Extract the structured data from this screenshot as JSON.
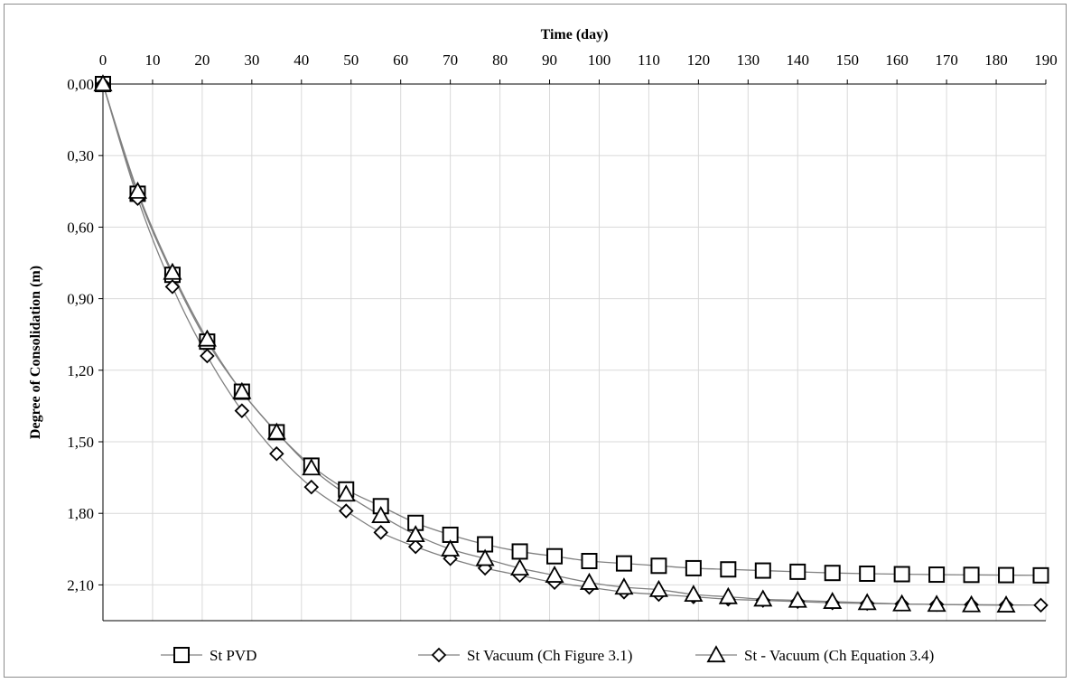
{
  "chart_data": {
    "type": "line",
    "xlabel": "Time (day)",
    "ylabel": "Degree of Consolidation (m)",
    "x_axis_position": "top",
    "y_axis_inverted": true,
    "xlim": [
      0,
      190
    ],
    "ylim": [
      0,
      2.25
    ],
    "x_ticks": [
      "0",
      "10",
      "20",
      "30",
      "40",
      "50",
      "60",
      "70",
      "80",
      "90",
      "100",
      "110",
      "120",
      "130",
      "140",
      "150",
      "160",
      "170",
      "180",
      "190"
    ],
    "x_tick_values": [
      0,
      10,
      20,
      30,
      40,
      50,
      60,
      70,
      80,
      90,
      100,
      110,
      120,
      130,
      140,
      150,
      160,
      170,
      180,
      190
    ],
    "y_ticks": [
      "0,00",
      "0,30",
      "0,60",
      "0,90",
      "1,20",
      "1,50",
      "1,80",
      "2,10"
    ],
    "y_tick_values": [
      0,
      0.3,
      0.6,
      0.9,
      1.2,
      1.5,
      1.8,
      2.1
    ],
    "grid": true,
    "legend_position": "bottom",
    "colors": {
      "line": "#808080",
      "marker": "#000000",
      "grid": "#d9d9d9",
      "axis": "#000000"
    },
    "series": [
      {
        "name": "St PVD",
        "marker": "square",
        "x": [
          0,
          7,
          14,
          21,
          28,
          35,
          42,
          49,
          56,
          63,
          70,
          77,
          84,
          91,
          98,
          105,
          112,
          119,
          126,
          133,
          140,
          147,
          154,
          161,
          168,
          175,
          182,
          189
        ],
        "y": [
          0,
          0.46,
          0.8,
          1.08,
          1.29,
          1.46,
          1.6,
          1.7,
          1.77,
          1.84,
          1.89,
          1.93,
          1.96,
          1.98,
          2.0,
          2.01,
          2.02,
          2.03,
          2.035,
          2.04,
          2.045,
          2.05,
          2.053,
          2.055,
          2.057,
          2.058,
          2.059,
          2.06
        ]
      },
      {
        "name": "St Vacuum (Ch Figure 3.1)",
        "marker": "diamond",
        "x": [
          0,
          7,
          14,
          21,
          28,
          35,
          42,
          49,
          56,
          63,
          70,
          77,
          84,
          91,
          98,
          105,
          112,
          119,
          126,
          133,
          140,
          147,
          154,
          161,
          168,
          175,
          182,
          189
        ],
        "y": [
          0,
          0.48,
          0.85,
          1.14,
          1.37,
          1.55,
          1.69,
          1.79,
          1.88,
          1.94,
          1.99,
          2.03,
          2.06,
          2.09,
          2.11,
          2.13,
          2.14,
          2.15,
          2.16,
          2.165,
          2.17,
          2.175,
          2.178,
          2.18,
          2.182,
          2.183,
          2.184,
          2.185
        ]
      },
      {
        "name": "St - Vacuum (Ch Equation 3.4)",
        "marker": "triangle",
        "x": [
          0,
          7,
          14,
          21,
          28,
          35,
          42,
          49,
          56,
          63,
          70,
          77,
          84,
          91,
          98,
          105,
          112,
          119,
          126,
          133,
          140,
          147,
          154,
          161,
          168,
          175,
          182
        ],
        "y": [
          0,
          0.45,
          0.79,
          1.07,
          1.29,
          1.46,
          1.61,
          1.72,
          1.81,
          1.89,
          1.95,
          1.99,
          2.03,
          2.06,
          2.09,
          2.11,
          2.12,
          2.14,
          2.15,
          2.16,
          2.165,
          2.17,
          2.175,
          2.18,
          2.182,
          2.184,
          2.185
        ]
      }
    ]
  }
}
